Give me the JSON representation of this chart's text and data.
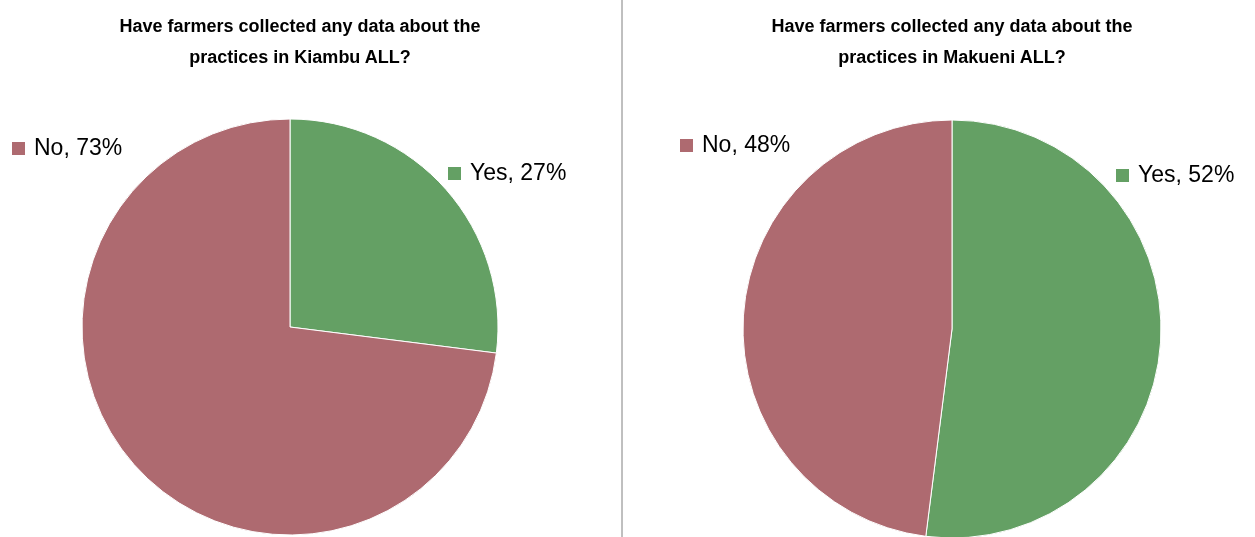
{
  "chart_data": [
    {
      "type": "pie",
      "title": "Have farmers collected any data about the practices in Kiambu ALL?",
      "categories": [
        "Yes",
        "No"
      ],
      "values": [
        27,
        73
      ],
      "colors": [
        "#64a064",
        "#ae6a70"
      ],
      "value_labels": [
        ", 27%",
        ", 73%"
      ],
      "legend": "top"
    },
    {
      "type": "pie",
      "title": "Have farmers collected any data about the practices in Makueni ALL?",
      "categories": [
        "Yes",
        "No"
      ],
      "values": [
        52,
        48
      ],
      "colors": [
        "#64a064",
        "#ae6a70"
      ],
      "value_labels": [
        ", 52%",
        ", 48%"
      ],
      "legend": "top"
    }
  ]
}
